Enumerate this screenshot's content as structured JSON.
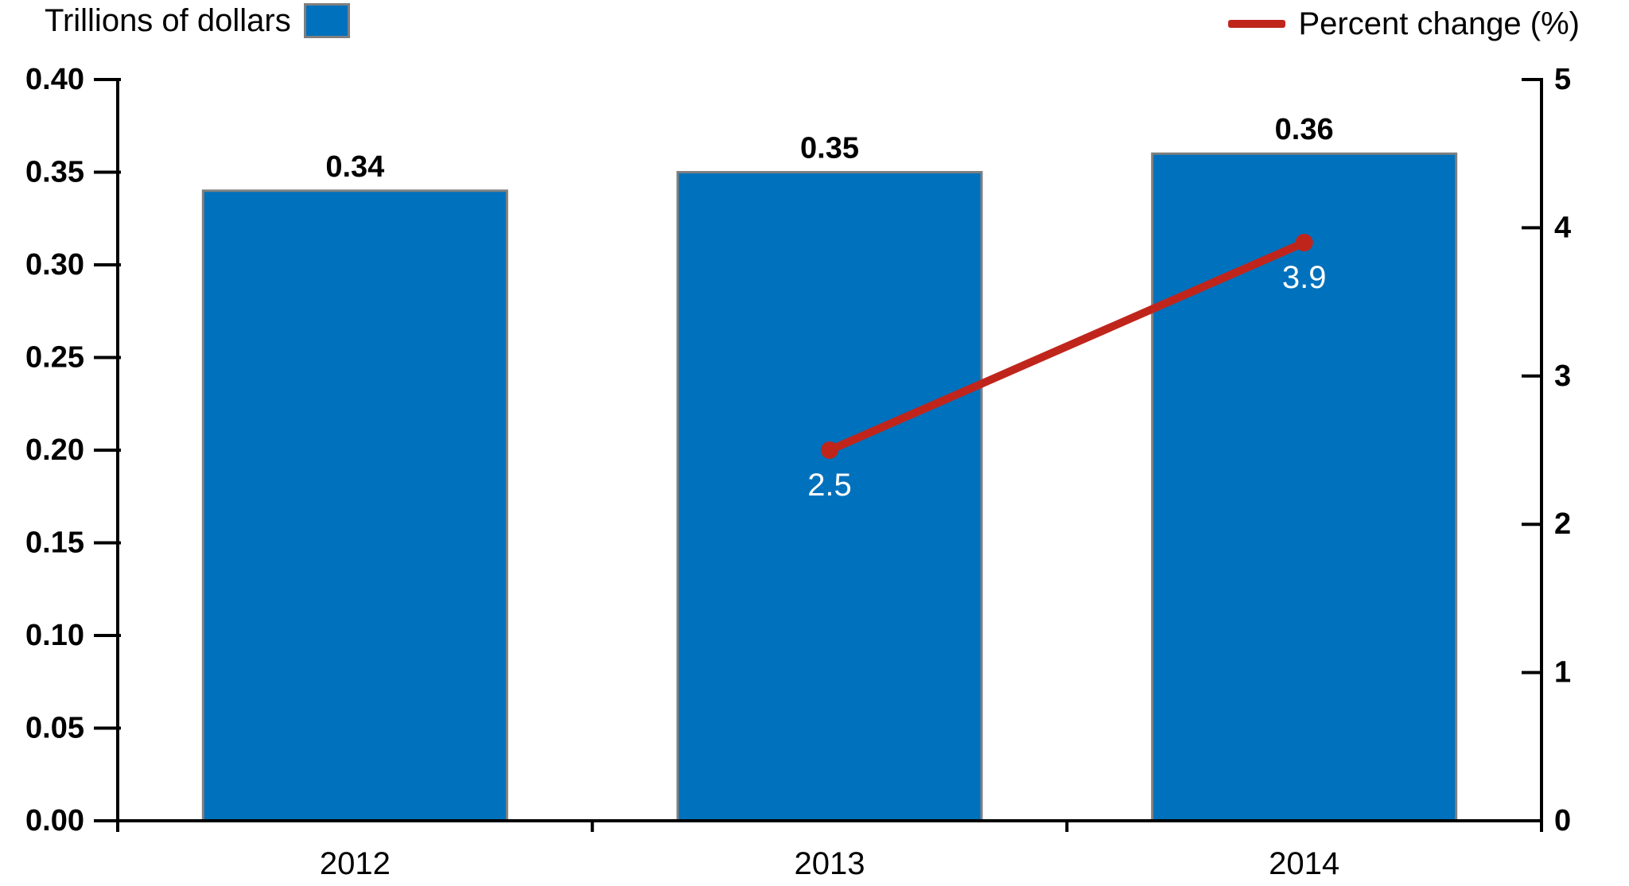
{
  "legend": {
    "bars_label": "Trillions of dollars",
    "line_label": "Percent change (%)"
  },
  "colors": {
    "bar": "#0071BC",
    "bar_border": "#7F7F7F",
    "line": "#C0251C",
    "axis": "#000000",
    "text": "#000000",
    "point_label_text": "#FFFFFF",
    "background": "#FFFFFF"
  },
  "chart_data": {
    "type": "bar",
    "subtype": "combo-bar-line",
    "title": "",
    "categories": [
      "2012",
      "2013",
      "2014"
    ],
    "series": [
      {
        "name": "Trillions of dollars",
        "type": "bar",
        "axis": "left",
        "values": [
          0.34,
          0.35,
          0.36
        ],
        "data_labels": [
          "0.34",
          "0.35",
          "0.36"
        ]
      },
      {
        "name": "Percent change (%)",
        "type": "line",
        "axis": "right",
        "values": [
          null,
          2.5,
          3.9
        ],
        "data_labels": [
          null,
          "2.5",
          "3.9"
        ]
      }
    ],
    "left_axis": {
      "title": "Trillions of dollars",
      "min": 0,
      "max": 0.4,
      "step": 0.05,
      "tick_labels": [
        "0.00",
        "0.05",
        "0.10",
        "0.15",
        "0.20",
        "0.25",
        "0.30",
        "0.35",
        "0.40"
      ]
    },
    "right_axis": {
      "title": "Percent change (%)",
      "min": 0,
      "max": 5,
      "step": 1,
      "tick_labels": [
        "0",
        "1",
        "2",
        "3",
        "4",
        "5"
      ]
    },
    "grid": false,
    "legend_position": "top"
  }
}
